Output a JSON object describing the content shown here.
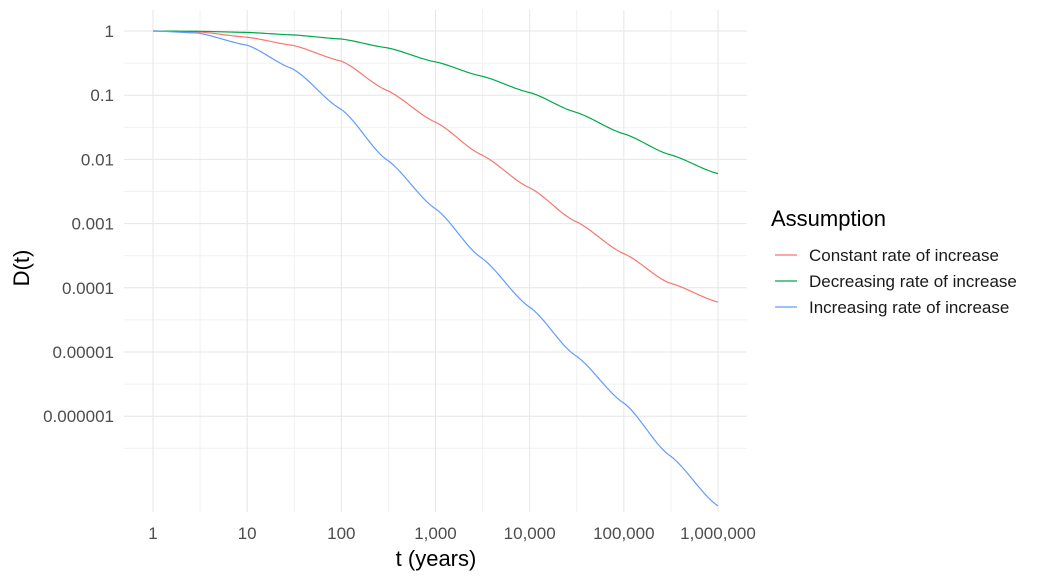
{
  "chart_data": {
    "type": "line",
    "xlabel": "t (years)",
    "ylabel": "D(t)",
    "x_scale": "log10",
    "y_scale": "log10",
    "xlim": [
      1,
      1000000
    ],
    "ylim": [
      3e-08,
      1
    ],
    "grid": true,
    "legend_position": "right",
    "x_ticks": [
      {
        "value": 1,
        "label": "1"
      },
      {
        "value": 10,
        "label": "10"
      },
      {
        "value": 100,
        "label": "100"
      },
      {
        "value": 1000,
        "label": "1,000"
      },
      {
        "value": 10000,
        "label": "10,000"
      },
      {
        "value": 100000,
        "label": "100,000"
      },
      {
        "value": 1000000,
        "label": "1,000,000"
      }
    ],
    "y_ticks": [
      {
        "value": 1,
        "label": "1"
      },
      {
        "value": 0.1,
        "label": "0.1"
      },
      {
        "value": 0.01,
        "label": "0.01"
      },
      {
        "value": 0.001,
        "label": "0.001"
      },
      {
        "value": 0.0001,
        "label": "0.0001"
      },
      {
        "value": 1e-05,
        "label": "0.00001"
      },
      {
        "value": 1e-06,
        "label": "0.000001"
      }
    ],
    "legend_title": "Assumption",
    "x": [
      1,
      3,
      10,
      30,
      100,
      300,
      1000,
      3000,
      10000,
      30000,
      100000,
      300000,
      1000000
    ],
    "series": [
      {
        "name": "Constant rate of increase",
        "color": "#F8766D",
        "values": [
          1,
          0.97,
          0.8,
          0.6,
          0.34,
          0.12,
          0.038,
          0.012,
          0.0036,
          0.0011,
          0.00034,
          0.00012,
          6e-05
        ]
      },
      {
        "name": "Decreasing rate of increase",
        "color": "#00A949",
        "values": [
          1,
          0.99,
          0.95,
          0.87,
          0.75,
          0.55,
          0.33,
          0.2,
          0.11,
          0.055,
          0.025,
          0.012,
          0.006
        ]
      },
      {
        "name": "Increasing rate of increase",
        "color": "#619CFF",
        "values": [
          1,
          0.93,
          0.6,
          0.26,
          0.06,
          0.01,
          0.0017,
          0.0003,
          5e-05,
          9e-06,
          1.6e-06,
          2.5e-07,
          4e-08
        ]
      }
    ]
  }
}
